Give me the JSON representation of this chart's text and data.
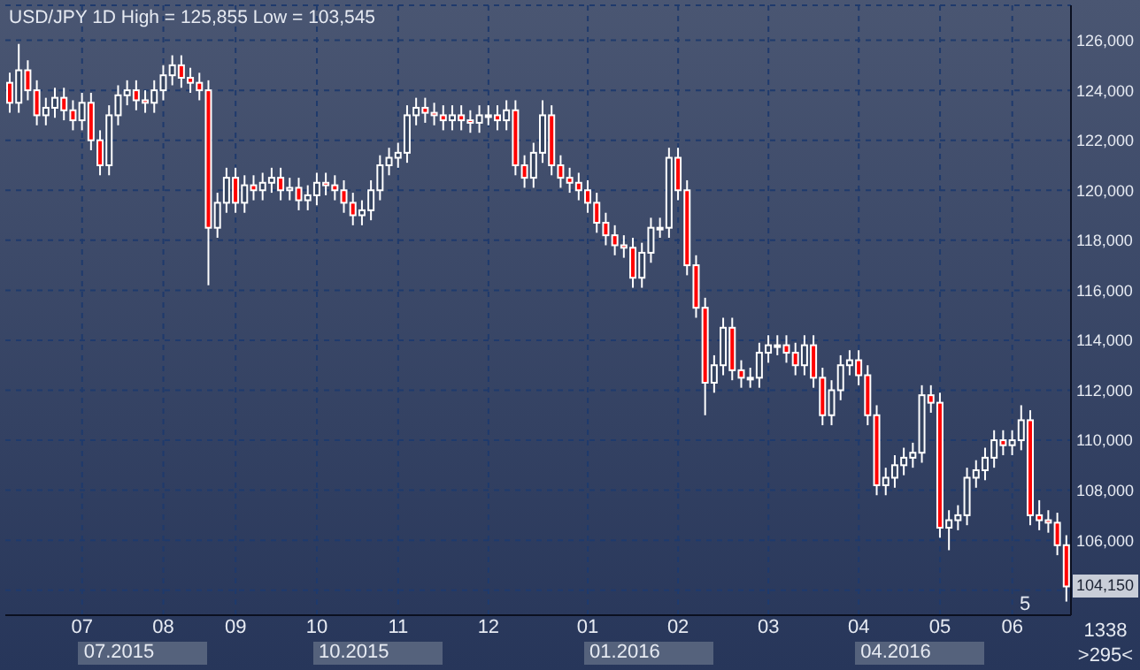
{
  "chart_data": {
    "type": "candlestick",
    "title": "USD/JPY 1D High = 125,855 Low = 103,545",
    "color": "#ffffff",
    "grid": true,
    "categories": [
      null,
      null,
      null,
      null,
      null,
      null,
      null,
      null,
      "07",
      null,
      null,
      null,
      null,
      null,
      null,
      null,
      null,
      "08",
      null,
      null,
      null,
      null,
      null,
      null,
      null,
      "09",
      null,
      null,
      null,
      null,
      null,
      null,
      null,
      null,
      "10",
      null,
      null,
      null,
      null,
      null,
      null,
      null,
      null,
      "11",
      null,
      null,
      null,
      null,
      null,
      null,
      null,
      null,
      null,
      "12",
      null,
      null,
      null,
      null,
      null,
      null,
      null,
      null,
      null,
      null,
      "01",
      null,
      null,
      null,
      null,
      null,
      null,
      null,
      null,
      null,
      "02",
      null,
      null,
      null,
      null,
      null,
      null,
      null,
      null,
      null,
      "03",
      null,
      null,
      null,
      null,
      null,
      null,
      null,
      null,
      null,
      "04",
      null,
      null,
      null,
      null,
      null,
      null,
      null,
      null,
      "05",
      null,
      null,
      null,
      null,
      null,
      null,
      null,
      "06",
      null,
      null,
      null,
      null,
      null,
      null
    ],
    "ohlc": [
      [
        124300,
        124700,
        123100,
        123500
      ],
      [
        123500,
        125855,
        123100,
        124800
      ],
      [
        124800,
        125200,
        123600,
        124000
      ],
      [
        124000,
        124400,
        122600,
        123000
      ],
      [
        123000,
        123700,
        122600,
        123300
      ],
      [
        123300,
        124100,
        122900,
        123700
      ],
      [
        123700,
        124100,
        122800,
        123200
      ],
      [
        123200,
        123600,
        122400,
        122800
      ],
      [
        122800,
        123900,
        122400,
        123500
      ],
      [
        123500,
        123900,
        121600,
        122000
      ],
      [
        122000,
        122400,
        120600,
        121000
      ],
      [
        121000,
        123400,
        120600,
        123000
      ],
      [
        123000,
        124200,
        122600,
        123800
      ],
      [
        123800,
        124400,
        123400,
        124000
      ],
      [
        124000,
        124400,
        123200,
        123600
      ],
      [
        123600,
        124000,
        123100,
        123500
      ],
      [
        123500,
        124400,
        123100,
        124000
      ],
      [
        124000,
        125000,
        123600,
        124600
      ],
      [
        124600,
        125400,
        124200,
        125000
      ],
      [
        125000,
        125400,
        124100,
        124500
      ],
      [
        124500,
        124900,
        123900,
        124300
      ],
      [
        124300,
        124700,
        123600,
        124000
      ],
      [
        124000,
        124400,
        116200,
        118500
      ],
      [
        118500,
        119900,
        118100,
        119500
      ],
      [
        119500,
        120900,
        119100,
        120500
      ],
      [
        120500,
        120900,
        119100,
        119500
      ],
      [
        119500,
        120600,
        119100,
        120200
      ],
      [
        120200,
        120600,
        119600,
        120000
      ],
      [
        120000,
        120700,
        119600,
        120300
      ],
      [
        120300,
        120900,
        119900,
        120500
      ],
      [
        120500,
        120900,
        119600,
        120000
      ],
      [
        120000,
        120500,
        119600,
        120100
      ],
      [
        120100,
        120500,
        119200,
        119600
      ],
      [
        119600,
        120200,
        119200,
        119800
      ],
      [
        119800,
        120700,
        119400,
        120300
      ],
      [
        120300,
        120700,
        119800,
        120200
      ],
      [
        120200,
        120600,
        119600,
        120000
      ],
      [
        120000,
        120400,
        119100,
        119500
      ],
      [
        119500,
        119900,
        118600,
        119000
      ],
      [
        119000,
        119600,
        118600,
        119200
      ],
      [
        119200,
        120400,
        118800,
        120000
      ],
      [
        120000,
        121400,
        119600,
        121000
      ],
      [
        121000,
        121700,
        120600,
        121300
      ],
      [
        121300,
        121900,
        120900,
        121500
      ],
      [
        121500,
        123400,
        121100,
        123000
      ],
      [
        123000,
        123700,
        122600,
        123300
      ],
      [
        123300,
        123700,
        122700,
        123100
      ],
      [
        123100,
        123500,
        122600,
        123000
      ],
      [
        123000,
        123400,
        122400,
        122800
      ],
      [
        122800,
        123400,
        122400,
        123000
      ],
      [
        123000,
        123400,
        122400,
        122800
      ],
      [
        122800,
        123200,
        122300,
        122700
      ],
      [
        122700,
        123400,
        122300,
        123000
      ],
      [
        123000,
        123400,
        122600,
        123000
      ],
      [
        123000,
        123400,
        122400,
        122800
      ],
      [
        122800,
        123600,
        122400,
        123200
      ],
      [
        123200,
        123600,
        120600,
        121000
      ],
      [
        121000,
        121400,
        120100,
        120500
      ],
      [
        120500,
        121900,
        120100,
        121500
      ],
      [
        121500,
        123600,
        121100,
        123000
      ],
      [
        123000,
        123400,
        120600,
        121000
      ],
      [
        121000,
        121400,
        120100,
        120500
      ],
      [
        120500,
        120900,
        119900,
        120300
      ],
      [
        120300,
        120700,
        119600,
        120000
      ],
      [
        120000,
        120400,
        119100,
        119500
      ],
      [
        119500,
        119900,
        118300,
        118700
      ],
      [
        118700,
        119100,
        117800,
        118200
      ],
      [
        118200,
        118600,
        117400,
        117800
      ],
      [
        117800,
        118200,
        117300,
        117700
      ],
      [
        117700,
        118100,
        116100,
        116500
      ],
      [
        116500,
        117900,
        116100,
        117500
      ],
      [
        117500,
        118900,
        117100,
        118500
      ],
      [
        118500,
        118900,
        118100,
        118500
      ],
      [
        118500,
        121700,
        118100,
        121300
      ],
      [
        121300,
        121700,
        119600,
        120000
      ],
      [
        120000,
        120400,
        116600,
        117000
      ],
      [
        117000,
        117400,
        114900,
        115300
      ],
      [
        115300,
        115700,
        111000,
        112300
      ],
      [
        112300,
        113400,
        111900,
        113000
      ],
      [
        113000,
        114900,
        112600,
        114500
      ],
      [
        114500,
        114900,
        112400,
        112800
      ],
      [
        112800,
        113200,
        112100,
        112500
      ],
      [
        112500,
        112900,
        112100,
        112500
      ],
      [
        112500,
        113900,
        112100,
        113500
      ],
      [
        113500,
        114200,
        113100,
        113800
      ],
      [
        113800,
        114200,
        113400,
        113800
      ],
      [
        113800,
        114200,
        113100,
        113500
      ],
      [
        113500,
        113900,
        112600,
        113000
      ],
      [
        113000,
        114200,
        112600,
        113800
      ],
      [
        113800,
        114200,
        112100,
        112500
      ],
      [
        112500,
        112900,
        110600,
        111000
      ],
      [
        111000,
        112400,
        110600,
        112000
      ],
      [
        112000,
        113400,
        111600,
        113000
      ],
      [
        113000,
        113600,
        112600,
        113200
      ],
      [
        113200,
        113600,
        112200,
        112600
      ],
      [
        112600,
        113000,
        110600,
        111000
      ],
      [
        111000,
        111400,
        107800,
        108200
      ],
      [
        108200,
        108900,
        107800,
        108500
      ],
      [
        108500,
        109400,
        108100,
        109000
      ],
      [
        109000,
        109700,
        108600,
        109300
      ],
      [
        109300,
        109900,
        108900,
        109500
      ],
      [
        109500,
        112200,
        109100,
        111800
      ],
      [
        111800,
        112200,
        111100,
        111500
      ],
      [
        111500,
        111900,
        106100,
        106500
      ],
      [
        106500,
        107200,
        105600,
        106800
      ],
      [
        106800,
        107400,
        106400,
        107000
      ],
      [
        107000,
        108900,
        106600,
        108500
      ],
      [
        108500,
        109200,
        108100,
        108800
      ],
      [
        108800,
        109700,
        108400,
        109300
      ],
      [
        109300,
        110400,
        108900,
        110000
      ],
      [
        110000,
        110400,
        109400,
        109800
      ],
      [
        109800,
        110400,
        109400,
        110000
      ],
      [
        110000,
        111400,
        109600,
        110800
      ],
      [
        110800,
        111200,
        106600,
        107000
      ],
      [
        107000,
        107600,
        106400,
        106800
      ],
      [
        106800,
        107200,
        106300,
        106700
      ],
      [
        106700,
        107100,
        105400,
        105800
      ],
      [
        105800,
        106200,
        103545,
        104150
      ]
    ],
    "ylim": [
      103000,
      127400
    ],
    "yticks": [
      {
        "value": 104000,
        "label": null
      },
      {
        "value": 106000,
        "label": "106,000"
      },
      {
        "value": 108000,
        "label": "108,000"
      },
      {
        "value": 110000,
        "label": "110,000"
      },
      {
        "value": 112000,
        "label": "112,000"
      },
      {
        "value": 114000,
        "label": "114,000"
      },
      {
        "value": 116000,
        "label": "116,000"
      },
      {
        "value": 118000,
        "label": "118,000"
      },
      {
        "value": 120000,
        "label": "120,000"
      },
      {
        "value": 122000,
        "label": "122,000"
      },
      {
        "value": 124000,
        "label": "124,000"
      },
      {
        "value": 126000,
        "label": "126,000"
      }
    ],
    "annotations": [
      "07.2015",
      "10.2015",
      "01.2016",
      "04.2016",
      {
        "text": "104,150",
        "y": 104150
      },
      "5",
      "1338",
      ">295<"
    ]
  }
}
